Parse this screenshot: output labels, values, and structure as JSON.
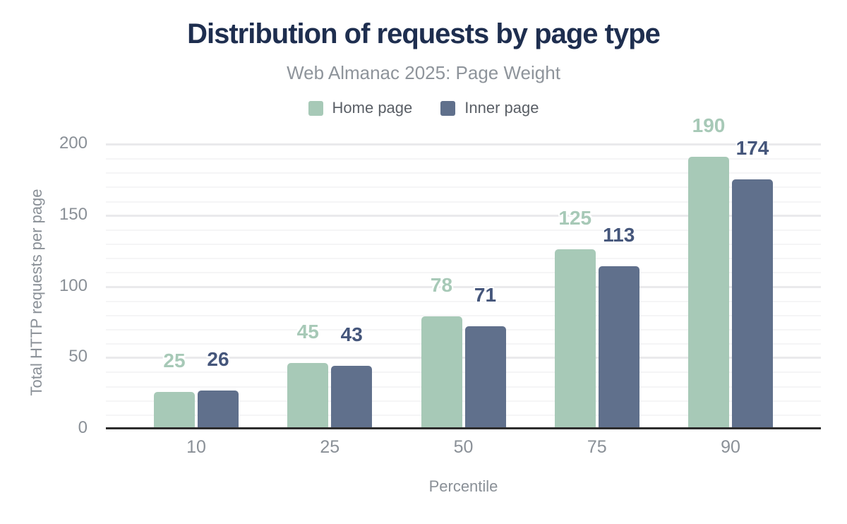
{
  "header": {
    "title": "Distribution of requests by page type",
    "subtitle": "Web Almanac 2025: Page Weight"
  },
  "legend": [
    {
      "label": "Home page",
      "color": "#a7c9b7"
    },
    {
      "label": "Inner page",
      "color": "#60708c"
    }
  ],
  "colors": {
    "title": "#1e2e4f",
    "subtitle": "#8e949b",
    "tick_text": "#8a9097",
    "axis_line": "#2d2d2d",
    "home_bar": "#a7c9b7",
    "home_label": "#a7c9b7",
    "inner_bar": "#60708c",
    "inner_label": "#45567b"
  },
  "chart_data": {
    "type": "bar",
    "title": "Distribution of requests by page type",
    "subtitle": "Web Almanac 2025: Page Weight",
    "categories": [
      "10",
      "25",
      "50",
      "75",
      "90"
    ],
    "series": [
      {
        "name": "Home page",
        "values": [
          25,
          45,
          78,
          125,
          190
        ],
        "color": "#a7c9b7",
        "label_color": "#a7c9b7"
      },
      {
        "name": "Inner page",
        "values": [
          26,
          43,
          71,
          113,
          174
        ],
        "color": "#60708c",
        "label_color": "#45567b"
      }
    ],
    "xlabel": "Percentile",
    "ylabel": "Total HTTP requests per page",
    "ylim": [
      0,
      200
    ],
    "y_ticks": [
      0,
      50,
      100,
      150,
      200
    ],
    "grid": {
      "minor_step": 10,
      "major_step": 50,
      "shown": true
    },
    "legend_position": "top",
    "value_labels_shown": true
  }
}
